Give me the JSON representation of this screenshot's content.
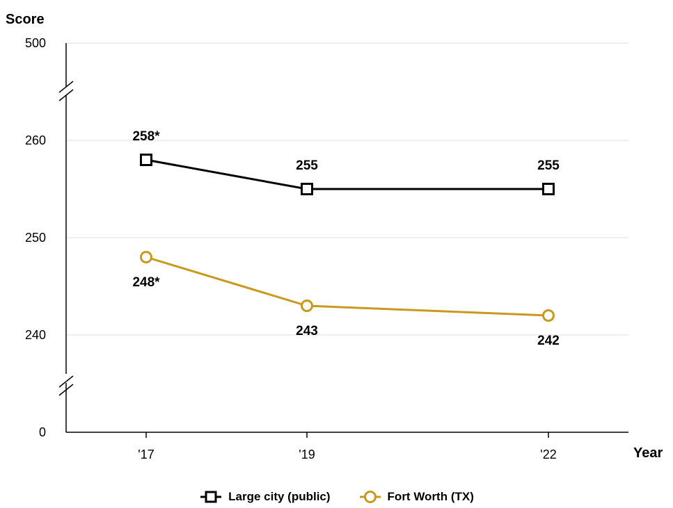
{
  "chart_data": {
    "type": "line",
    "ylabel": "Score",
    "xlabel": "Year",
    "categories": [
      "'17",
      "'19",
      "'22"
    ],
    "ylim": [
      0,
      500
    ],
    "y_axis_break": true,
    "y_ticks": [
      "500",
      "260",
      "250",
      "240",
      "0"
    ],
    "grid": true,
    "legend_position": "bottom",
    "series": [
      {
        "name": "Large city (public)",
        "values": [
          258,
          255,
          255
        ],
        "labels": [
          "258*",
          "255",
          "255"
        ],
        "color": "#000000",
        "marker": "square"
      },
      {
        "name": "Fort Worth (TX)",
        "values": [
          248,
          243,
          242
        ],
        "labels": [
          "248*",
          "243",
          "242"
        ],
        "color": "#C9991E",
        "marker": "circle"
      }
    ]
  }
}
